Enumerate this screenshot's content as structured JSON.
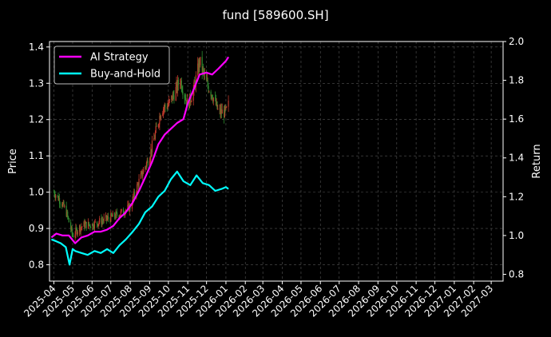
{
  "chart_data": {
    "type": "line",
    "title": "fund [589600.SH]",
    "ylabel_left": "Price",
    "ylabel_right": "Return",
    "grid": true,
    "legend_position": "top-left",
    "colors": {
      "background": "#000000",
      "candle_up": "#c0392b",
      "candle_down": "#2e8b2e",
      "ai_strategy": "#ff00ff",
      "buy_and_hold": "#00ffff",
      "grid": "#555555"
    },
    "x_axis": {
      "min": "2025-03-25",
      "max": "2027-03-20",
      "tick_labels": [
        "2025-04",
        "2025-05",
        "2025-06",
        "2025-07",
        "2025-08",
        "2025-09",
        "2025-10",
        "2025-11",
        "2025-12",
        "2026-01",
        "2026-02",
        "2026-03",
        "2026-04",
        "2026-05",
        "2026-06",
        "2026-07",
        "2026-08",
        "2026-09",
        "2026-10",
        "2026-11",
        "2026-12",
        "2027-01",
        "2027-02",
        "2027-03"
      ]
    },
    "y_left": {
      "min": 0.755,
      "max": 1.415,
      "ticks": [
        "0.8",
        "0.9",
        "1.0",
        "1.1",
        "1.2",
        "1.3",
        "1.4"
      ]
    },
    "y_right": {
      "min": 0.765,
      "max": 2.0,
      "ticks": [
        "0.8",
        "1.0",
        "1.2",
        "1.4",
        "1.6",
        "1.8",
        "2.0"
      ]
    },
    "price_series": {
      "name": "Price",
      "x": [
        "2025-04-01",
        "2025-04-10",
        "2025-04-20",
        "2025-05-01",
        "2025-05-10",
        "2025-05-20",
        "2025-06-01",
        "2025-06-15",
        "2025-07-01",
        "2025-07-15",
        "2025-08-01",
        "2025-08-15",
        "2025-09-01",
        "2025-09-10",
        "2025-09-20",
        "2025-10-01",
        "2025-10-10",
        "2025-10-20",
        "2025-11-01",
        "2025-11-10",
        "2025-11-20",
        "2025-12-01",
        "2025-12-10",
        "2025-12-20",
        "2026-01-01",
        "2026-01-05"
      ],
      "y": [
        1.0,
        0.98,
        0.95,
        0.88,
        0.9,
        0.91,
        0.91,
        0.92,
        0.93,
        0.94,
        0.96,
        1.03,
        1.1,
        1.16,
        1.23,
        1.24,
        1.27,
        1.31,
        1.24,
        1.28,
        1.36,
        1.3,
        1.27,
        1.22,
        1.22,
        1.24
      ]
    },
    "series": [
      {
        "name": "AI Strategy",
        "x": [
          "2025-03-28",
          "2025-04-05",
          "2025-04-15",
          "2025-04-25",
          "2025-05-05",
          "2025-05-15",
          "2025-05-25",
          "2025-06-05",
          "2025-06-15",
          "2025-06-25",
          "2025-07-05",
          "2025-07-15",
          "2025-07-25",
          "2025-08-05",
          "2025-08-15",
          "2025-08-25",
          "2025-09-05",
          "2025-09-15",
          "2025-09-25",
          "2025-10-05",
          "2025-10-15",
          "2025-10-25",
          "2025-11-01",
          "2025-11-10",
          "2025-11-20",
          "2025-12-01",
          "2025-12-10",
          "2025-12-20",
          "2026-01-01",
          "2026-01-05"
        ],
        "y": [
          0.99,
          1.01,
          1.0,
          1.0,
          0.96,
          0.99,
          1.0,
          1.02,
          1.02,
          1.03,
          1.05,
          1.09,
          1.12,
          1.17,
          1.23,
          1.3,
          1.38,
          1.47,
          1.52,
          1.55,
          1.58,
          1.6,
          1.68,
          1.75,
          1.83,
          1.84,
          1.83,
          1.86,
          1.9,
          1.92
        ]
      },
      {
        "name": "Buy-and-Hold",
        "x": [
          "2025-03-28",
          "2025-04-05",
          "2025-04-12",
          "2025-04-20",
          "2025-04-26",
          "2025-05-01",
          "2025-05-05",
          "2025-05-15",
          "2025-05-25",
          "2025-06-05",
          "2025-06-15",
          "2025-06-25",
          "2025-07-05",
          "2025-07-15",
          "2025-07-25",
          "2025-08-05",
          "2025-08-15",
          "2025-08-25",
          "2025-09-05",
          "2025-09-15",
          "2025-09-25",
          "2025-10-05",
          "2025-10-15",
          "2025-10-25",
          "2025-11-05",
          "2025-11-15",
          "2025-11-25",
          "2025-12-05",
          "2025-12-15",
          "2025-12-25",
          "2026-01-01",
          "2026-01-05"
        ],
        "y": [
          0.98,
          0.97,
          0.96,
          0.94,
          0.85,
          0.93,
          0.92,
          0.91,
          0.9,
          0.92,
          0.91,
          0.93,
          0.91,
          0.95,
          0.98,
          1.02,
          1.06,
          1.12,
          1.15,
          1.2,
          1.23,
          1.29,
          1.33,
          1.28,
          1.26,
          1.31,
          1.27,
          1.26,
          1.23,
          1.24,
          1.25,
          1.24
        ]
      }
    ]
  }
}
